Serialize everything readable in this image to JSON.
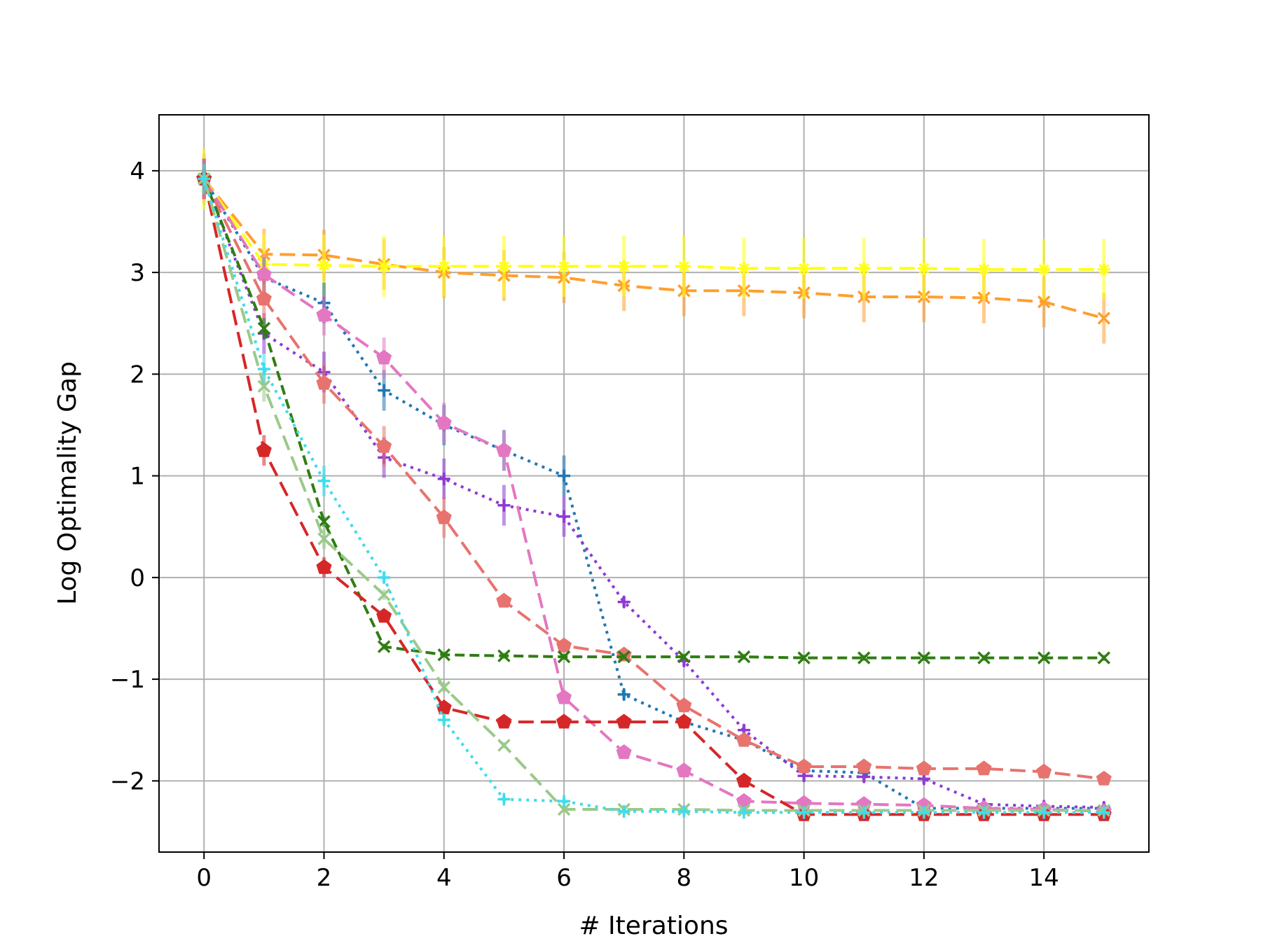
{
  "chart_data": {
    "type": "line",
    "title": "",
    "xlabel": "# Iterations",
    "ylabel": "Log Optimality Gap",
    "xlim": [
      -0.75,
      15.75
    ],
    "ylim": [
      -2.7,
      4.55
    ],
    "xticks": [
      0,
      2,
      4,
      6,
      8,
      10,
      12,
      14
    ],
    "xtick_labels": [
      "0",
      "2",
      "4",
      "6",
      "8",
      "10",
      "12",
      "14"
    ],
    "yticks": [
      -2,
      -1,
      0,
      1,
      2,
      3,
      4
    ],
    "ytick_labels": [
      "−2",
      "−1",
      "0",
      "1",
      "2",
      "3",
      "4"
    ],
    "grid": true,
    "legend": "none",
    "series": [
      {
        "color": "#ff9f2e",
        "dash": "long-dash",
        "marker": "x",
        "x": [
          0,
          1,
          2,
          3,
          4,
          5,
          6,
          7,
          8,
          9,
          10,
          11,
          12,
          13,
          14,
          15
        ],
        "y": [
          3.92,
          3.18,
          3.17,
          3.08,
          3.0,
          2.97,
          2.95,
          2.87,
          2.82,
          2.82,
          2.8,
          2.76,
          2.76,
          2.75,
          2.71,
          2.55
        ],
        "err": [
          0.25,
          0.25,
          0.25,
          0.25,
          0.25,
          0.25,
          0.25,
          0.25,
          0.25,
          0.25,
          0.25,
          0.25,
          0.25,
          0.25,
          0.25,
          0.25
        ]
      },
      {
        "color": "#ffff14",
        "dash": "long-dash",
        "marker": "star",
        "x": [
          0,
          1,
          2,
          3,
          4,
          5,
          6,
          7,
          8,
          9,
          10,
          11,
          12,
          13,
          14,
          15
        ],
        "y": [
          3.92,
          3.08,
          3.07,
          3.06,
          3.06,
          3.06,
          3.06,
          3.06,
          3.06,
          3.04,
          3.04,
          3.04,
          3.04,
          3.03,
          3.03,
          3.03
        ],
        "err": [
          0.3,
          0.3,
          0.3,
          0.3,
          0.3,
          0.3,
          0.3,
          0.3,
          0.3,
          0.3,
          0.3,
          0.3,
          0.3,
          0.3,
          0.3,
          0.3
        ]
      },
      {
        "color": "#1f77b4",
        "dash": "dotted",
        "marker": "plus",
        "x": [
          0,
          1,
          2,
          3,
          4,
          5,
          6,
          7,
          8,
          9,
          10,
          11,
          12,
          13,
          14,
          15
        ],
        "y": [
          3.92,
          2.95,
          2.7,
          1.84,
          1.5,
          1.25,
          1.0,
          -1.15,
          -1.42,
          -1.6,
          -1.9,
          -1.92,
          -2.27,
          -2.27,
          -2.27,
          -2.27
        ],
        "err": [
          0.2,
          0.2,
          0.2,
          0.2,
          0.2,
          0.2,
          0.2,
          0.05,
          0.05,
          0.05,
          0.05,
          0.05,
          0.05,
          0.05,
          0.05,
          0.05
        ]
      },
      {
        "color": "#8e3ad4",
        "dash": "dotted",
        "marker": "plus",
        "x": [
          0,
          1,
          2,
          3,
          4,
          5,
          6,
          7,
          8,
          9,
          10,
          11,
          12,
          13,
          14,
          15
        ],
        "y": [
          3.92,
          2.4,
          2.02,
          1.18,
          0.97,
          0.71,
          0.6,
          -0.24,
          -0.82,
          -1.5,
          -1.95,
          -1.96,
          -1.98,
          -2.23,
          -2.25,
          -2.26
        ],
        "err": [
          0.2,
          0.2,
          0.2,
          0.2,
          0.2,
          0.2,
          0.2,
          0.05,
          0.05,
          0.05,
          0.05,
          0.05,
          0.05,
          0.05,
          0.05,
          0.05
        ]
      },
      {
        "color": "#e377c2",
        "dash": "long-dash",
        "marker": "pentagon",
        "x": [
          0,
          1,
          2,
          3,
          4,
          5,
          6,
          7,
          8,
          9,
          10,
          11,
          12,
          13,
          14,
          15
        ],
        "y": [
          3.92,
          2.98,
          2.58,
          2.16,
          1.52,
          1.25,
          -1.18,
          -1.72,
          -1.9,
          -2.2,
          -2.22,
          -2.23,
          -2.24,
          -2.27,
          -2.28,
          -2.3
        ],
        "err": [
          0.2,
          0.2,
          0.2,
          0.2,
          0.2,
          0.2,
          0.05,
          0.05,
          0.05,
          0.05,
          0.05,
          0.05,
          0.05,
          0.05,
          0.05,
          0.05
        ]
      },
      {
        "color": "#e8736e",
        "dash": "long-dash",
        "marker": "pentagon",
        "x": [
          0,
          1,
          2,
          3,
          4,
          5,
          6,
          7,
          8,
          9,
          10,
          11,
          12,
          13,
          14,
          15
        ],
        "y": [
          3.92,
          2.74,
          1.91,
          1.29,
          0.59,
          -0.23,
          -0.67,
          -0.76,
          -1.26,
          -1.6,
          -1.86,
          -1.86,
          -1.88,
          -1.88,
          -1.91,
          -1.98
        ],
        "err": [
          0.2,
          0.2,
          0.2,
          0.2,
          0.2,
          0.05,
          0.05,
          0.05,
          0.05,
          0.05,
          0.05,
          0.05,
          0.05,
          0.05,
          0.05,
          0.05
        ]
      },
      {
        "color": "#2f7d12",
        "dash": "dashed",
        "marker": "x",
        "x": [
          0,
          1,
          2,
          3,
          4,
          5,
          6,
          7,
          8,
          9,
          10,
          11,
          12,
          13,
          14,
          15
        ],
        "y": [
          3.92,
          2.45,
          0.55,
          -0.68,
          -0.76,
          -0.77,
          -0.78,
          -0.78,
          -0.78,
          -0.78,
          -0.79,
          -0.79,
          -0.79,
          -0.79,
          -0.79,
          -0.79
        ],
        "err": [
          0.1,
          0.1,
          0.05,
          0.03,
          0.03,
          0.03,
          0.03,
          0.03,
          0.03,
          0.03,
          0.03,
          0.03,
          0.03,
          0.03,
          0.03,
          0.03
        ]
      },
      {
        "color": "#d62728",
        "dash": "long-dash",
        "marker": "pentagon",
        "x": [
          0,
          1,
          2,
          3,
          4,
          5,
          6,
          7,
          8,
          9,
          10,
          11,
          12,
          13,
          14,
          15
        ],
        "y": [
          3.92,
          1.25,
          0.1,
          -0.38,
          -1.28,
          -1.42,
          -1.42,
          -1.42,
          -1.42,
          -2.0,
          -2.33,
          -2.33,
          -2.33,
          -2.33,
          -2.33,
          -2.33
        ],
        "err": [
          0.15,
          0.15,
          0.1,
          0.05,
          0.05,
          0.03,
          0.03,
          0.03,
          0.03,
          0.03,
          0.03,
          0.03,
          0.03,
          0.03,
          0.03,
          0.03
        ]
      },
      {
        "color": "#9bc98a",
        "dash": "long-dash",
        "marker": "x",
        "x": [
          0,
          1,
          2,
          3,
          4,
          5,
          6,
          7,
          8,
          9,
          10,
          11,
          12,
          13,
          14,
          15
        ],
        "y": [
          3.92,
          1.88,
          0.38,
          -0.17,
          -1.08,
          -1.65,
          -2.28,
          -2.28,
          -2.28,
          -2.29,
          -2.29,
          -2.29,
          -2.29,
          -2.29,
          -2.29,
          -2.29
        ],
        "err": [
          0.15,
          0.15,
          0.1,
          0.05,
          0.05,
          0.03,
          0.03,
          0.03,
          0.03,
          0.03,
          0.03,
          0.03,
          0.03,
          0.03,
          0.03,
          0.03
        ]
      },
      {
        "color": "#3fdcec",
        "dash": "dotted",
        "marker": "plus",
        "x": [
          0,
          1,
          2,
          3,
          4,
          5,
          6,
          7,
          8,
          9,
          10,
          11,
          12,
          13,
          14,
          15
        ],
        "y": [
          3.92,
          2.05,
          0.95,
          0.0,
          -1.4,
          -2.18,
          -2.2,
          -2.3,
          -2.3,
          -2.31,
          -2.31,
          -2.31,
          -2.31,
          -2.31,
          -2.31,
          -2.31
        ],
        "err": [
          0.15,
          0.15,
          0.15,
          0.05,
          0.05,
          0.03,
          0.03,
          0.03,
          0.03,
          0.03,
          0.03,
          0.03,
          0.03,
          0.03,
          0.03,
          0.03
        ]
      }
    ]
  }
}
